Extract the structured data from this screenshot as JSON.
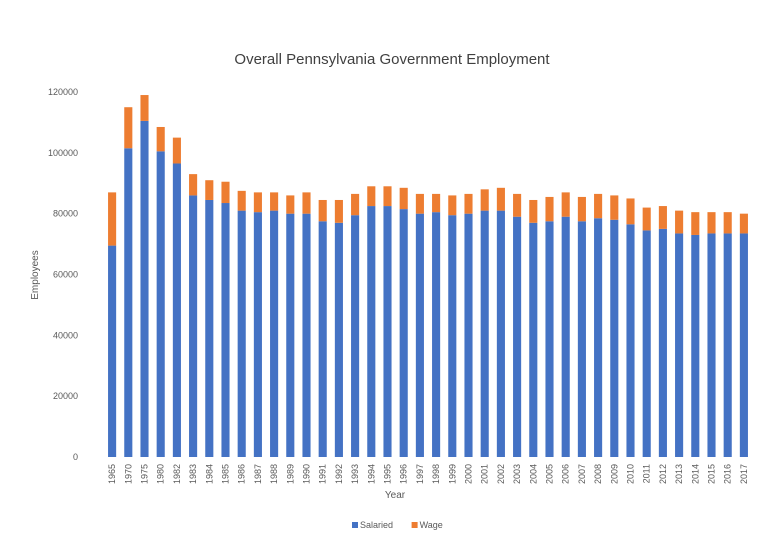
{
  "chart_data": {
    "type": "bar",
    "stacked": true,
    "title": "Overall Pennsylvania Government Employment",
    "xlabel": "Year",
    "ylabel": "Employees",
    "ylim": [
      0,
      120000
    ],
    "yticks": [
      0,
      20000,
      40000,
      60000,
      80000,
      100000,
      120000
    ],
    "grid": false,
    "legend_position": "bottom",
    "categories": [
      "1965",
      "1970",
      "1975",
      "1980",
      "1982",
      "1983",
      "1984",
      "1985",
      "1986",
      "1987",
      "1988",
      "1989",
      "1990",
      "1991",
      "1992",
      "1993",
      "1994",
      "1995",
      "1996",
      "1997",
      "1998",
      "1999",
      "2000",
      "2001",
      "2002",
      "2003",
      "2004",
      "2005",
      "2006",
      "2007",
      "2008",
      "2009",
      "2010",
      "2011",
      "2012",
      "2013",
      "2014",
      "2015",
      "2016",
      "2017"
    ],
    "series": [
      {
        "name": "Salaried",
        "color": "#4472C4",
        "values": [
          69500,
          101500,
          110500,
          100500,
          96500,
          86000,
          84500,
          83500,
          81000,
          80500,
          81000,
          80000,
          80000,
          77500,
          77000,
          79500,
          82500,
          82500,
          81500,
          80000,
          80500,
          79500,
          80000,
          81000,
          81000,
          79000,
          77000,
          77500,
          79000,
          77500,
          78500,
          78000,
          76500,
          74500,
          75000,
          73500,
          73000,
          73500,
          73500,
          73500
        ]
      },
      {
        "name": "Wage",
        "color": "#ED7D31",
        "values": [
          17500,
          13500,
          8500,
          8000,
          8500,
          7000,
          6500,
          7000,
          6500,
          6500,
          6000,
          6000,
          7000,
          7000,
          7500,
          7000,
          6500,
          6500,
          7000,
          6500,
          6000,
          6500,
          6500,
          7000,
          7500,
          7500,
          7500,
          8000,
          8000,
          8000,
          8000,
          8000,
          8500,
          7500,
          7500,
          7500,
          7500,
          7000,
          7000,
          6500
        ]
      }
    ]
  }
}
